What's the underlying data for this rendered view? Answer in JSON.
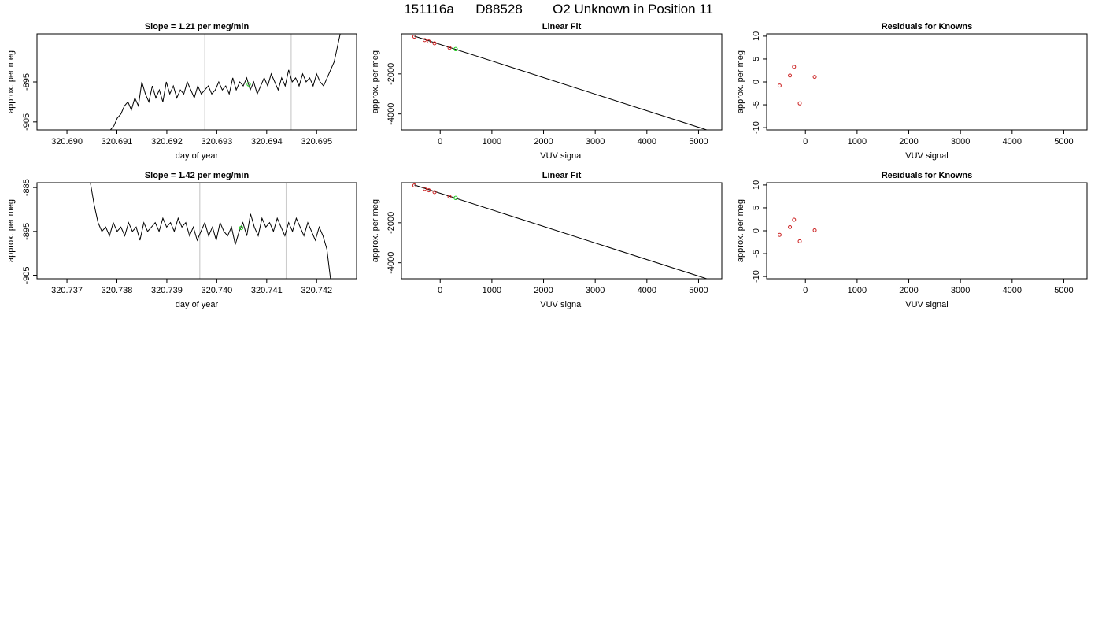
{
  "figure": {
    "title_parts": [
      "151116a",
      "D88528",
      "O2 Unknown in Position  11"
    ]
  },
  "colors": {
    "trace": "#000000",
    "marker_green": "#22cc22",
    "points": "#cc2222",
    "vline": "#cccccc",
    "fit_line": "#000000"
  },
  "chart_data": [
    {
      "type": "line",
      "title": "Slope =  1.21  per meg/min",
      "xlabel": "day of year",
      "ylabel": "approx. per meg",
      "xlim": [
        320.6894,
        320.6958
      ],
      "ylim": [
        -907,
        -883
      ],
      "xticks": [
        "320.690",
        "320.691",
        "320.692",
        "320.693",
        "320.694",
        "320.695"
      ],
      "yticks": [
        "-905",
        "-895"
      ],
      "vlines": [
        320.69276,
        320.69449
      ],
      "green_marker": [
        320.69364,
        -895.6
      ],
      "trace": {
        "x_start": 320.69087,
        "x_end": 320.69549,
        "points": [
          -907,
          -906,
          -904,
          -903,
          -901,
          -900,
          -902,
          -899,
          -901,
          -895,
          -898,
          -900,
          -896,
          -899,
          -897,
          -900,
          -895,
          -898,
          -896,
          -899,
          -897,
          -898,
          -895,
          -897,
          -899,
          -896,
          -898,
          -897,
          -896,
          -898,
          -897,
          -895,
          -897,
          -896,
          -898,
          -894,
          -897,
          -895,
          -896,
          -894,
          -897,
          -895,
          -898,
          -896,
          -894,
          -896,
          -893,
          -895,
          -897,
          -894,
          -896,
          -892,
          -895,
          -894,
          -896,
          -893,
          -895,
          -894,
          -896,
          -893,
          -895,
          -896,
          -894,
          -892,
          -890,
          -886,
          -882
        ]
      }
    },
    {
      "type": "scatter",
      "title": "Linear Fit",
      "xlabel": "VUV signal",
      "ylabel": "approx. per meg",
      "xlim": [
        -750,
        5450
      ],
      "ylim": [
        -4800,
        0
      ],
      "xticks": [
        0,
        1000,
        2000,
        3000,
        4000,
        5000
      ],
      "yticks": [
        -2000,
        -4000
      ],
      "fit": {
        "slope": -0.828,
        "intercept": -528,
        "x_range": [
          -500,
          5300
        ]
      },
      "points": [
        [
          -500,
          -140
        ],
        [
          -300,
          -310
        ],
        [
          -220,
          -380
        ],
        [
          -110,
          -470
        ],
        [
          180,
          -700
        ]
      ],
      "green_point": [
        300,
        -760
      ]
    },
    {
      "type": "scatter",
      "title": "Residuals for Knowns",
      "xlabel": "VUV signal",
      "ylabel": "approx. per meg",
      "xlim": [
        -750,
        5450
      ],
      "ylim": [
        -10.5,
        10.5
      ],
      "xticks": [
        0,
        1000,
        2000,
        3000,
        4000,
        5000
      ],
      "yticks": [
        10,
        5,
        0,
        -5,
        -10
      ],
      "points": [
        [
          -500,
          -0.8
        ],
        [
          -300,
          1.4
        ],
        [
          -220,
          3.3
        ],
        [
          -110,
          -4.7
        ],
        [
          180,
          1.1
        ]
      ]
    },
    {
      "type": "line",
      "title": "Slope =  1.42  per meg/min",
      "xlabel": "day of year",
      "ylabel": "approx. per meg",
      "xlim": [
        320.7364,
        320.7428
      ],
      "ylim": [
        -905.8,
        -883.9
      ],
      "xticks": [
        "320.737",
        "320.738",
        "320.739",
        "320.740",
        "320.741",
        "320.742"
      ],
      "yticks": [
        "-885",
        "-895",
        "-905"
      ],
      "vlines": [
        320.73966,
        320.74139
      ],
      "green_marker": [
        320.74049,
        -894.2
      ],
      "trace": {
        "x_start": 320.73747,
        "x_end": 320.74228,
        "points": [
          -884,
          -889,
          -893,
          -895,
          -894,
          -896,
          -893,
          -895,
          -894,
          -896,
          -893,
          -895,
          -894,
          -897,
          -893,
          -895,
          -894,
          -893,
          -895,
          -892,
          -894,
          -893,
          -895,
          -892,
          -894,
          -893,
          -896,
          -894,
          -897,
          -895,
          -893,
          -896,
          -894,
          -897,
          -893,
          -895,
          -896,
          -894,
          -898,
          -895,
          -893,
          -896,
          -891,
          -894,
          -896,
          -892,
          -894,
          -893,
          -895,
          -892,
          -894,
          -896,
          -893,
          -895,
          -892,
          -894,
          -896,
          -893,
          -895,
          -897,
          -894,
          -896,
          -899,
          -906
        ]
      }
    },
    {
      "type": "scatter",
      "title": "Linear Fit",
      "xlabel": "VUV signal",
      "ylabel": "approx. per meg",
      "xlim": [
        -750,
        5450
      ],
      "ylim": [
        -4800,
        0
      ],
      "xticks": [
        0,
        1000,
        2000,
        3000,
        4000,
        5000
      ],
      "yticks": [
        -2000,
        -4000
      ],
      "fit": {
        "slope": -0.828,
        "intercept": -528,
        "x_range": [
          -500,
          5300
        ]
      },
      "points": [
        [
          -500,
          -140
        ],
        [
          -300,
          -310
        ],
        [
          -220,
          -380
        ],
        [
          -110,
          -470
        ],
        [
          180,
          -700
        ]
      ],
      "green_point": [
        300,
        -760
      ]
    },
    {
      "type": "scatter",
      "title": "Residuals for Knowns",
      "xlabel": "VUV signal",
      "ylabel": "approx. per meg",
      "xlim": [
        -750,
        5450
      ],
      "ylim": [
        -10.5,
        10.5
      ],
      "xticks": [
        0,
        1000,
        2000,
        3000,
        4000,
        5000
      ],
      "yticks": [
        10,
        5,
        0,
        -5,
        -10
      ],
      "points": [
        [
          -500,
          -0.9
        ],
        [
          -300,
          0.8
        ],
        [
          -220,
          2.4
        ],
        [
          -110,
          -2.3
        ],
        [
          180,
          0.1
        ]
      ]
    }
  ]
}
